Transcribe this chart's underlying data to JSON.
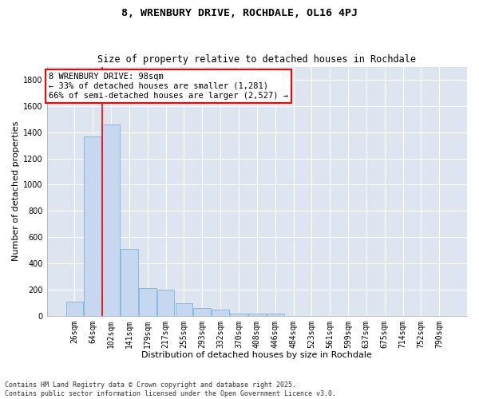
{
  "title": "8, WRENBURY DRIVE, ROCHDALE, OL16 4PJ",
  "subtitle": "Size of property relative to detached houses in Rochdale",
  "xlabel": "Distribution of detached houses by size in Rochdale",
  "ylabel": "Number of detached properties",
  "categories": [
    "26sqm",
    "64sqm",
    "102sqm",
    "141sqm",
    "179sqm",
    "217sqm",
    "255sqm",
    "293sqm",
    "332sqm",
    "370sqm",
    "408sqm",
    "446sqm",
    "484sqm",
    "523sqm",
    "561sqm",
    "599sqm",
    "637sqm",
    "675sqm",
    "714sqm",
    "752sqm",
    "790sqm"
  ],
  "values": [
    110,
    1370,
    1460,
    510,
    210,
    200,
    95,
    60,
    50,
    15,
    15,
    15,
    0,
    0,
    0,
    0,
    0,
    0,
    0,
    0,
    0
  ],
  "bar_color": "#c5d8ef",
  "bar_edge_color": "#7fb3d8",
  "vline_x": 1.5,
  "vline_color": "red",
  "annotation_text": "8 WRENBURY DRIVE: 98sqm\n← 33% of detached houses are smaller (1,281)\n66% of semi-detached houses are larger (2,527) →",
  "annotation_box_color": "white",
  "annotation_box_edge": "red",
  "ylim": [
    0,
    1900
  ],
  "yticks": [
    0,
    200,
    400,
    600,
    800,
    1000,
    1200,
    1400,
    1600,
    1800
  ],
  "background_color": "#dde6f0",
  "grid_color": "white",
  "footer": "Contains HM Land Registry data © Crown copyright and database right 2025.\nContains public sector information licensed under the Open Government Licence v3.0.",
  "title_fontsize": 9.5,
  "subtitle_fontsize": 8.5,
  "axis_label_fontsize": 8,
  "tick_fontsize": 7,
  "annotation_fontsize": 7.5,
  "footer_fontsize": 6
}
